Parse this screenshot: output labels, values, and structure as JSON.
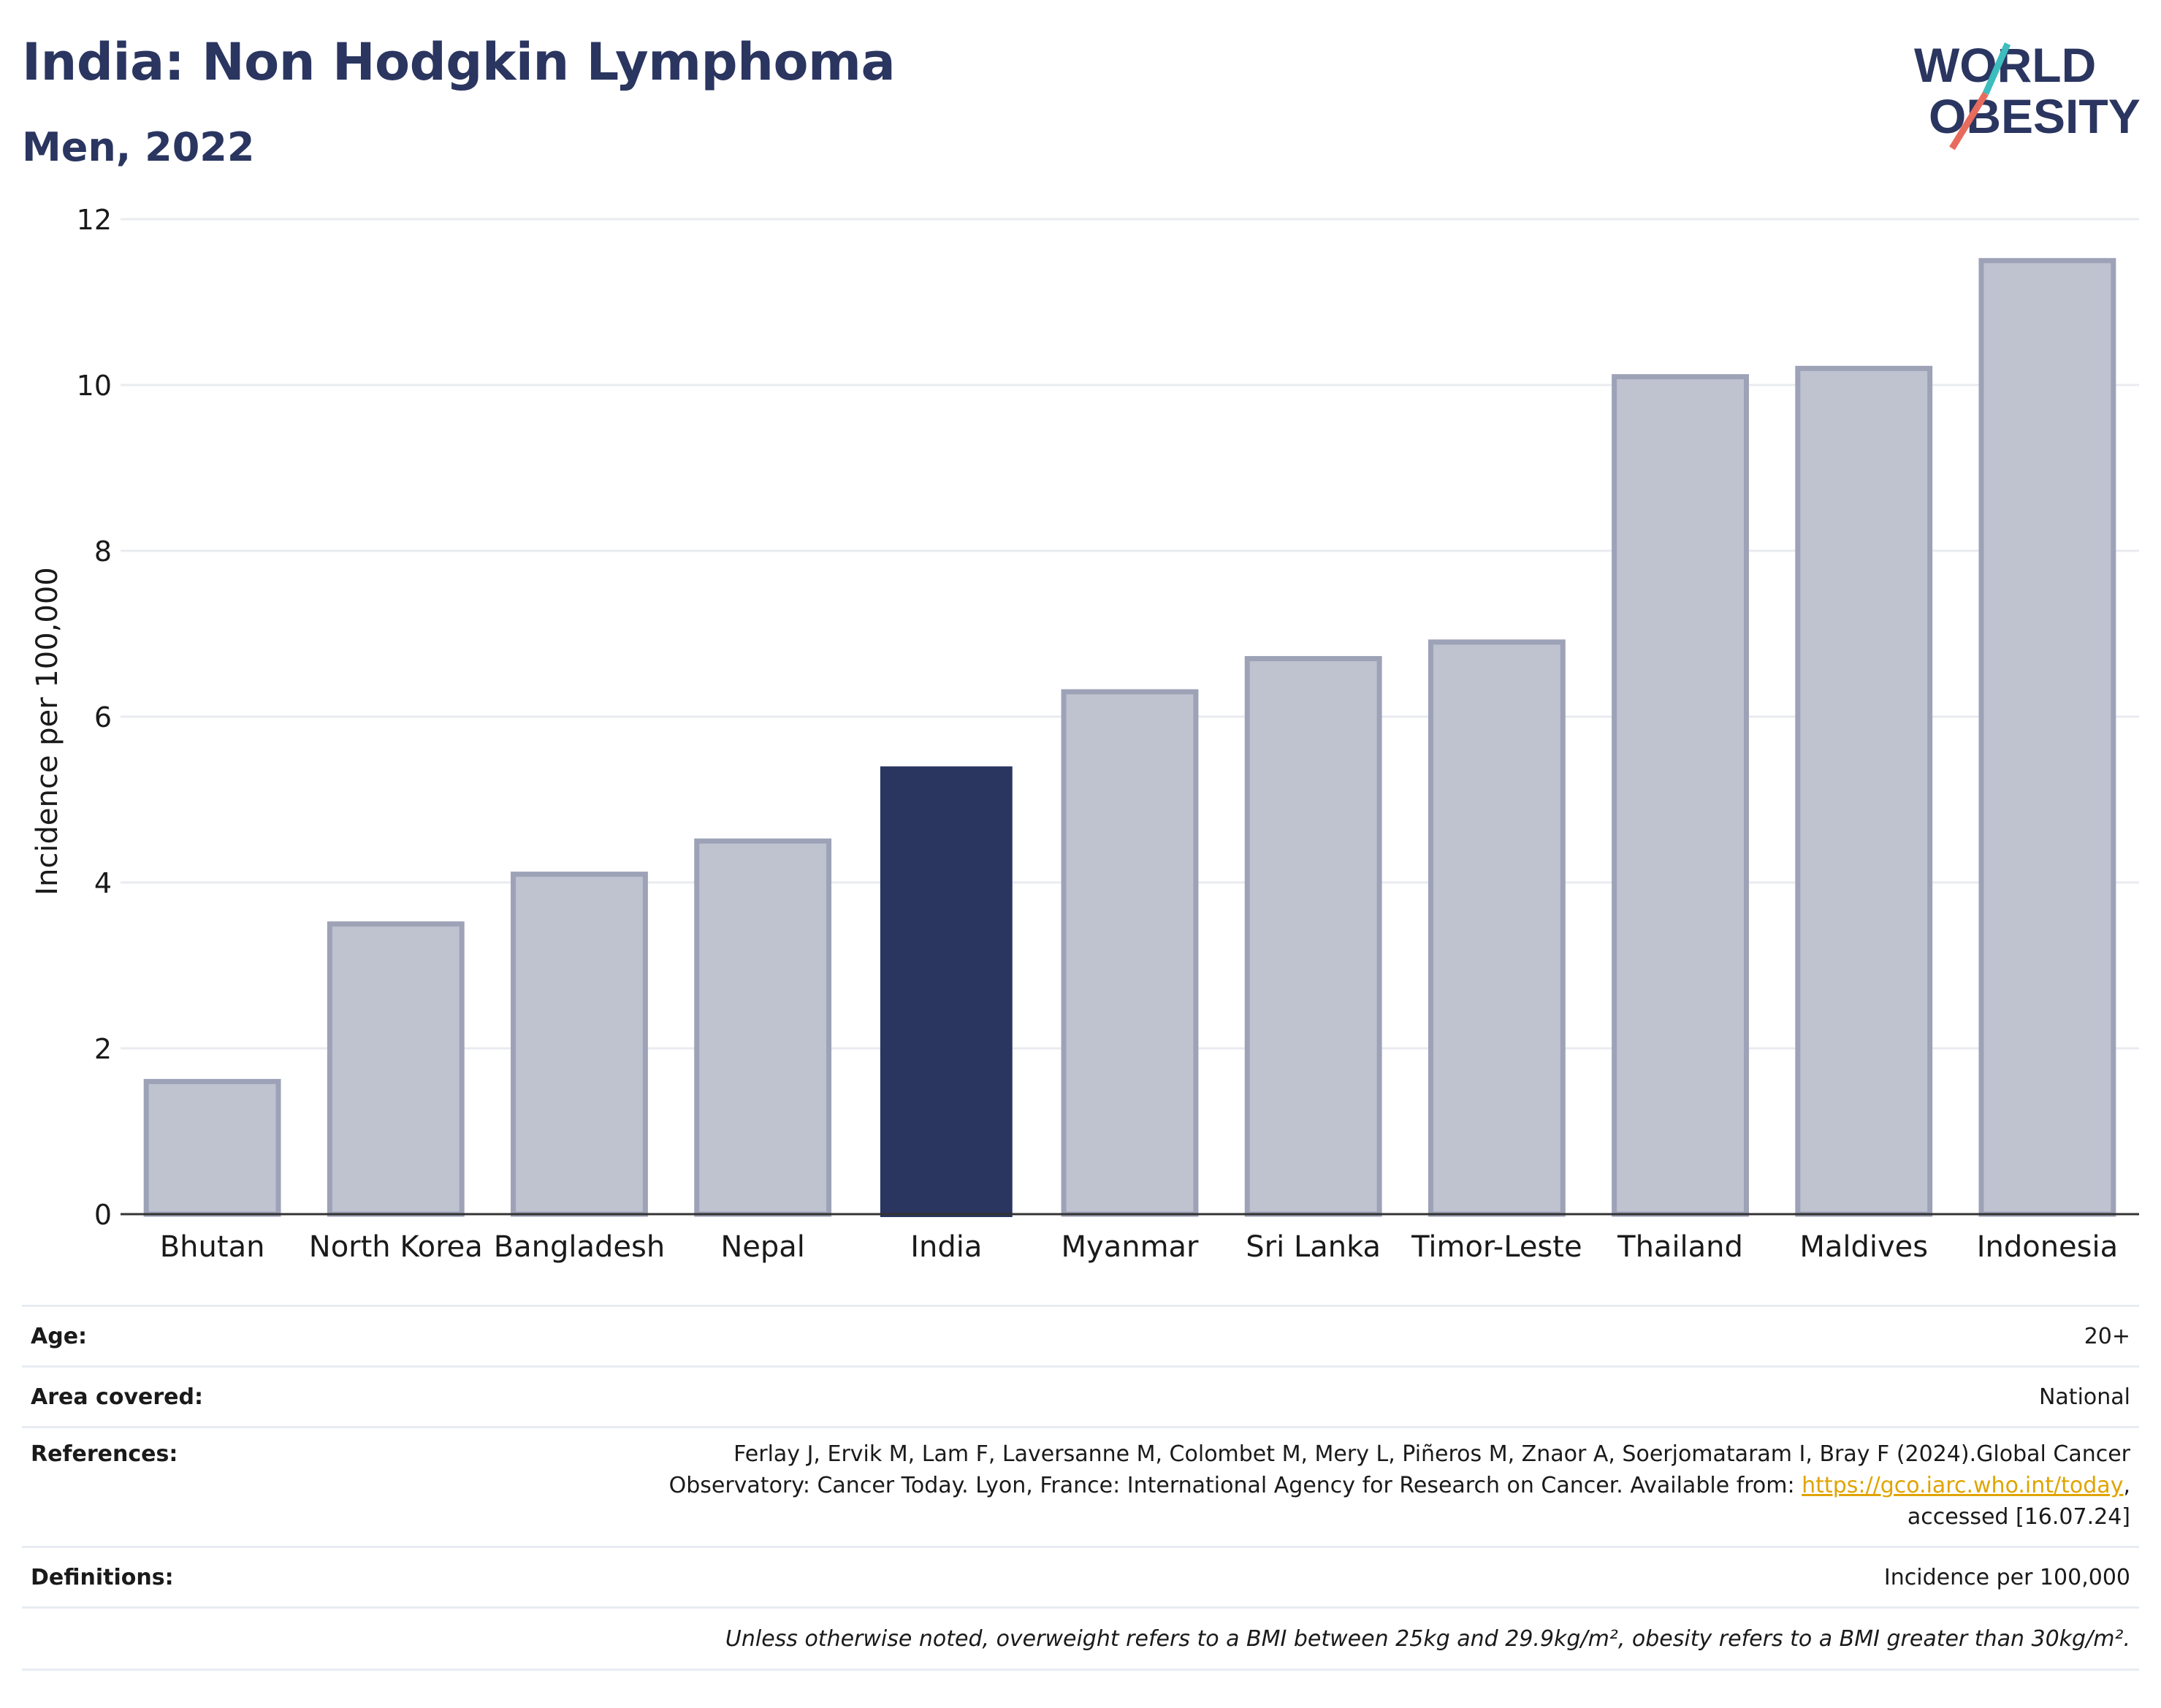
{
  "header": {
    "title": "India: Non Hodgkin Lymphoma",
    "subtitle": "Men, 2022",
    "logo_text": [
      "WORLD",
      "OBESITY"
    ]
  },
  "colors": {
    "navy": "#2a3560",
    "bar_muted": "#bfc2cf",
    "bar_muted_stroke": "#9da2b7",
    "logo_teal": "#3dbdbd",
    "logo_coral": "#e86c5d",
    "link": "#e0a400"
  },
  "chart_data": {
    "type": "bar",
    "title": "India: Non Hodgkin Lymphoma",
    "subtitle": "Men, 2022",
    "xlabel": "",
    "ylabel": "Incidence per 100,000",
    "categories": [
      "Bhutan",
      "North Korea",
      "Bangladesh",
      "Nepal",
      "India",
      "Myanmar",
      "Sri Lanka",
      "Timor-Leste",
      "Thailand",
      "Maldives",
      "Indonesia"
    ],
    "values": [
      1.6,
      3.5,
      4.1,
      4.5,
      5.4,
      6.3,
      6.7,
      6.9,
      10.1,
      10.2,
      11.5
    ],
    "highlight": "India",
    "ylim": [
      0,
      12
    ],
    "yticks": [
      0,
      2,
      4,
      6,
      8,
      10,
      12
    ],
    "grid": true,
    "legend": "none"
  },
  "info": {
    "age_label": "Age:",
    "age_value": "20+",
    "area_label": "Area covered:",
    "area_value": "National",
    "refs_label": "References:",
    "refs_line1": "Ferlay J, Ervik M, Lam F, Laversanne M, Colombet M, Mery L, Piñeros M, Znaor A, Soerjomataram I, Bray F (2024).Global Cancer",
    "refs_line2": "Observatory: Cancer Today. Lyon, France: International Agency for Research on Cancer. Available from: ",
    "refs_link": "https://gco.iarc.who.int/today",
    "refs_line2_end": ",",
    "refs_line3": "accessed [16.07.24]",
    "definitions_label": "Definitions:",
    "definitions_value": "Incidence per 100,000",
    "note": "Unless otherwise noted, overweight refers to a BMI between 25kg and 29.9kg/m², obesity refers to a BMI greater than 30kg/m²."
  }
}
